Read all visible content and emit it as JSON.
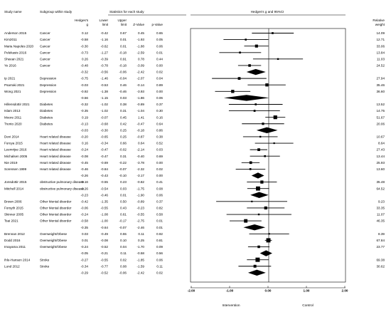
{
  "headers": {
    "study_name": "Study name",
    "subgroup": "Subgroup within study",
    "stats_group": "Statistics for each study",
    "hedges_g": [
      "Hedges's",
      "g"
    ],
    "lower": [
      "Lower",
      "limit"
    ],
    "upper": [
      "Upper",
      "limit"
    ],
    "z": "Z-Value",
    "p": "p-Value",
    "plot_title": "Hedges's g and 95%CI",
    "relative_weight": [
      "Relative",
      "weight"
    ]
  },
  "colors": {
    "ink": "#000000",
    "study_marker": "#000000",
    "summary_diamond": "#000000"
  },
  "chart_data": {
    "type": "forest",
    "xlim": [
      -2.0,
      2.0
    ],
    "xticks": [
      "-2.00",
      "-1.00",
      "0.00",
      "1.00",
      "2.00"
    ],
    "xlabel_left": "Intervention",
    "xlabel_right": "Control",
    "rows": [
      {
        "kind": "study",
        "study": "Anderson 2015",
        "subgroup": "Cancer",
        "g": "0.12",
        "lo": "-0.42",
        "hi": "0.67",
        "z": "0.45",
        "p": "0.65",
        "w": "14.09"
      },
      {
        "kind": "study",
        "study": "Kim2011",
        "subgroup": "Cancer",
        "g": "-0.58",
        "lo": "-1.16",
        "hi": "0.01",
        "z": "-1.93",
        "p": "0.05",
        "w": "12.71"
      },
      {
        "kind": "study",
        "study": "Maria Napoles 2020",
        "subgroup": "Cancer",
        "g": "-0.30",
        "lo": "-0.62",
        "hi": "0.01",
        "z": "-1.88",
        "p": "0.06",
        "w": "33.06"
      },
      {
        "kind": "study",
        "study": "Pelekasis 2016",
        "subgroup": "Cancer",
        "g": "-0.73",
        "lo": "-1.27",
        "hi": "-0.18",
        "z": "-2.59",
        "p": "0.01",
        "w": "13.84"
      },
      {
        "kind": "study",
        "study": "Sheean 2021",
        "subgroup": "Cancer",
        "g": "0.26",
        "lo": "-0.39",
        "hi": "0.91",
        "z": "0.78",
        "p": "0.44",
        "w": "11.03"
      },
      {
        "kind": "study",
        "study": "Ye 2016",
        "subgroup": "Cancer",
        "g": "-0.48",
        "lo": "-0.78",
        "hi": "-0.18",
        "z": "-3.09",
        "p": "0.00",
        "w": "24.52"
      },
      {
        "kind": "summary",
        "study": "",
        "subgroup": "",
        "g": "-0.32",
        "lo": "-0.56",
        "hi": "-0.06",
        "z": "-2.42",
        "p": "0.02",
        "w": ""
      },
      {
        "kind": "study",
        "study": "Ip 2021",
        "subgroup": "Depression",
        "g": "-0.75",
        "lo": "-1.46",
        "hi": "-0.04",
        "z": "-2.07",
        "p": "0.04",
        "w": "27.94"
      },
      {
        "kind": "study",
        "study": "Psarraki 2021",
        "subgroup": "Depression",
        "g": "-0.03",
        "lo": "-0.53",
        "hi": "0.46",
        "z": "-0.14",
        "p": "0.89",
        "w": "35.46"
      },
      {
        "kind": "study",
        "study": "Wong 2021",
        "subgroup": "Depression",
        "g": "-0.92",
        "lo": "-1.38",
        "hi": "-0.46",
        "z": "-3.93",
        "p": "0.00",
        "w": "36.60"
      },
      {
        "kind": "summary",
        "study": "",
        "subgroup": "",
        "g": "-0.56",
        "lo": "-1.15",
        "hi": "0.03",
        "z": "-1.86",
        "p": "0.06",
        "w": ""
      },
      {
        "kind": "study",
        "study": "Hillensdottir 2021",
        "subgroup": "Diabetes",
        "g": "-0.32",
        "lo": "-1.02",
        "hi": "0.38",
        "z": "-0.89",
        "p": "0.37",
        "w": "13.52"
      },
      {
        "kind": "study",
        "study": "Islam 2013",
        "subgroup": "Diabetes",
        "g": "-0.35",
        "lo": "-1.02",
        "hi": "0.31",
        "z": "-1.04",
        "p": "0.30",
        "w": "14.75"
      },
      {
        "kind": "study",
        "study": "Moore 2011",
        "subgroup": "Diabetes",
        "g": "0.19",
        "lo": "-0.07",
        "hi": "0.45",
        "z": "1.41",
        "p": "0.16",
        "w": "51.67"
      },
      {
        "kind": "study",
        "study": "Trento 2020",
        "subgroup": "Diabetes",
        "g": "-0.13",
        "lo": "-0.68",
        "hi": "0.42",
        "z": "-0.47",
        "p": "0.64",
        "w": "20.06"
      },
      {
        "kind": "summary",
        "study": "",
        "subgroup": "",
        "g": "-0.03",
        "lo": "-0.30",
        "hi": "0.25",
        "z": "-0.18",
        "p": "0.86",
        "w": ""
      },
      {
        "kind": "study",
        "study": "Devi 2014",
        "subgroup": "Heart related disease",
        "g": "-0.20",
        "lo": "-0.65",
        "hi": "0.25",
        "z": "-0.87",
        "p": "0.38",
        "w": "10.67"
      },
      {
        "kind": "study",
        "study": "Furuya 2015",
        "subgroup": "Heart related disease",
        "g": "0.16",
        "lo": "-0.34",
        "hi": "0.66",
        "z": "0.64",
        "p": "0.52",
        "w": "8.64"
      },
      {
        "kind": "study",
        "study": "Leemrijse 2016",
        "subgroup": "Heart related disease",
        "g": "-0.24",
        "lo": "-0.47",
        "hi": "-0.02",
        "z": "-2.14",
        "p": "0.03",
        "w": "27.43"
      },
      {
        "kind": "study",
        "study": "Michalsen 2005",
        "subgroup": "Heart related disease",
        "g": "-0.08",
        "lo": "-0.47",
        "hi": "0.31",
        "z": "-0.40",
        "p": "0.69",
        "w": "13.44"
      },
      {
        "kind": "study",
        "study": "Nie 2019",
        "subgroup": "Heart related disease",
        "g": "-0.45",
        "lo": "-0.69",
        "hi": "-0.22",
        "z": "-3.78",
        "p": "0.00",
        "w": "25.93"
      },
      {
        "kind": "study",
        "study": "Sorensen 1999",
        "subgroup": "Heart related disease",
        "g": "-0.46",
        "lo": "-0.84",
        "hi": "-0.07",
        "z": "-2.32",
        "p": "0.02",
        "w": "13.60"
      },
      {
        "kind": "summary",
        "study": "",
        "subgroup": "",
        "g": "-0.26",
        "lo": "-0.43",
        "hi": "-0.10",
        "z": "-3.17",
        "p": "0.00",
        "w": ""
      },
      {
        "kind": "study",
        "study": "Jonsdottir 2015",
        "subgroup": "obstructive pulmonary disease",
        "g": "-0.16",
        "lo": "-0.55",
        "hi": "0.23",
        "z": "-0.82",
        "p": "0.41",
        "w": "35.48"
      },
      {
        "kind": "study",
        "study": "Mitchell 2014",
        "subgroup": "obstructive pulmonary disease",
        "g": "-0.26",
        "lo": "-0.54",
        "hi": "0.03",
        "z": "-1.75",
        "p": "0.08",
        "w": "64.52"
      },
      {
        "kind": "summary",
        "study": "",
        "subgroup": "",
        "g": "-0.23",
        "lo": "-0.46",
        "hi": "0.01",
        "z": "-1.90",
        "p": "0.06",
        "w": ""
      },
      {
        "kind": "study",
        "study": "Brown 2006",
        "subgroup": "Other Mental disorder",
        "g": "-0.42",
        "lo": "-1.35",
        "hi": "0.50",
        "z": "-0.89",
        "p": "0.37",
        "w": "9.23"
      },
      {
        "kind": "study",
        "study": "Forsyth 2015",
        "subgroup": "Other Mental disorder",
        "g": "-0.06",
        "lo": "-0.55",
        "hi": "0.43",
        "z": "-0.23",
        "p": "0.82",
        "w": "33.35"
      },
      {
        "kind": "study",
        "study": "Skinner 2005",
        "subgroup": "Other Mental disorder",
        "g": "-0.24",
        "lo": "-1.08",
        "hi": "0.61",
        "z": "-0.55",
        "p": "0.58",
        "w": "11.07"
      },
      {
        "kind": "study",
        "study": "Tsai 2021",
        "subgroup": "Other Mental disorder",
        "g": "-0.58",
        "lo": "-1.00",
        "hi": "-0.17",
        "z": "-2.75",
        "p": "0.01",
        "w": "46.35"
      },
      {
        "kind": "summary",
        "study": "",
        "subgroup": "",
        "g": "-0.35",
        "lo": "-0.64",
        "hi": "-0.07",
        "z": "-2.46",
        "p": "0.01",
        "w": ""
      },
      {
        "kind": "study",
        "study": "Brennan 2012",
        "subgroup": "Overweight/Obese",
        "g": "0.03",
        "lo": "-0.49",
        "hi": "0.55",
        "z": "0.11",
        "p": "0.92",
        "w": "8.39"
      },
      {
        "kind": "study",
        "study": "Dodd 2016",
        "subgroup": "Overweight/Obese",
        "g": "0.01",
        "lo": "-0.08",
        "hi": "0.10",
        "z": "0.25",
        "p": "0.81",
        "w": "67.84"
      },
      {
        "kind": "study",
        "study": "Imayama 2011",
        "subgroup": "Overweight/Obese",
        "g": "-0.24",
        "lo": "-0.52",
        "hi": "0.04",
        "z": "-1.70",
        "p": "0.09",
        "w": "23.77"
      },
      {
        "kind": "summary",
        "study": "",
        "subgroup": "",
        "g": "-0.05",
        "lo": "-0.21",
        "hi": "0.11",
        "z": "-0.58",
        "p": "0.56",
        "w": ""
      },
      {
        "kind": "study",
        "study": "Ihle-Hansen 2014",
        "subgroup": "Stroke",
        "g": "-0.27",
        "lo": "-0.55",
        "hi": "0.02",
        "z": "-1.85",
        "p": "0.06",
        "w": "69.38"
      },
      {
        "kind": "study",
        "study": "Lund 2012",
        "subgroup": "Stroke",
        "g": "-0.34",
        "lo": "-0.77",
        "hi": "0.08",
        "z": "-1.59",
        "p": "0.11",
        "w": "30.62"
      },
      {
        "kind": "summary",
        "study": "",
        "subgroup": "",
        "g": "-0.29",
        "lo": "-0.52",
        "hi": "-0.06",
        "z": "-2.42",
        "p": "0.02",
        "w": ""
      }
    ]
  }
}
